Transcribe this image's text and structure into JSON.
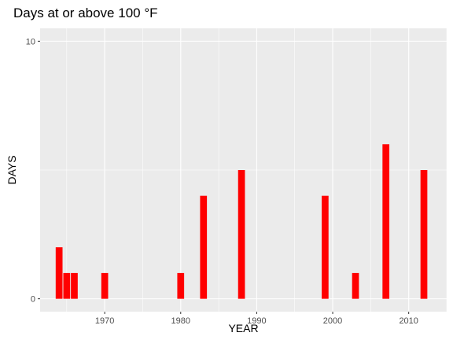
{
  "chart_data": {
    "type": "bar",
    "title": "Days at or above 100 °F",
    "xlabel": "YEAR",
    "ylabel": "DAYS",
    "x": [
      1964,
      1965,
      1966,
      1970,
      1980,
      1983,
      1988,
      1999,
      2003,
      2007,
      2012
    ],
    "values": [
      2,
      1,
      1,
      1,
      1,
      4,
      5,
      4,
      1,
      6,
      5
    ],
    "xlim": [
      1961.5,
      2015
    ],
    "ylim": [
      -0.5,
      10.5
    ],
    "xticks": [
      1970,
      1980,
      1990,
      2000,
      2010
    ],
    "xtick_labels": [
      "1970",
      "1980",
      "1990",
      "2000",
      "2010"
    ],
    "yticks": [
      0,
      10
    ],
    "ytick_labels": [
      "0",
      "10"
    ],
    "grid": true,
    "colors": {
      "bar": "#ff0000",
      "panel": "#ebebeb",
      "grid": "#ffffff"
    }
  }
}
